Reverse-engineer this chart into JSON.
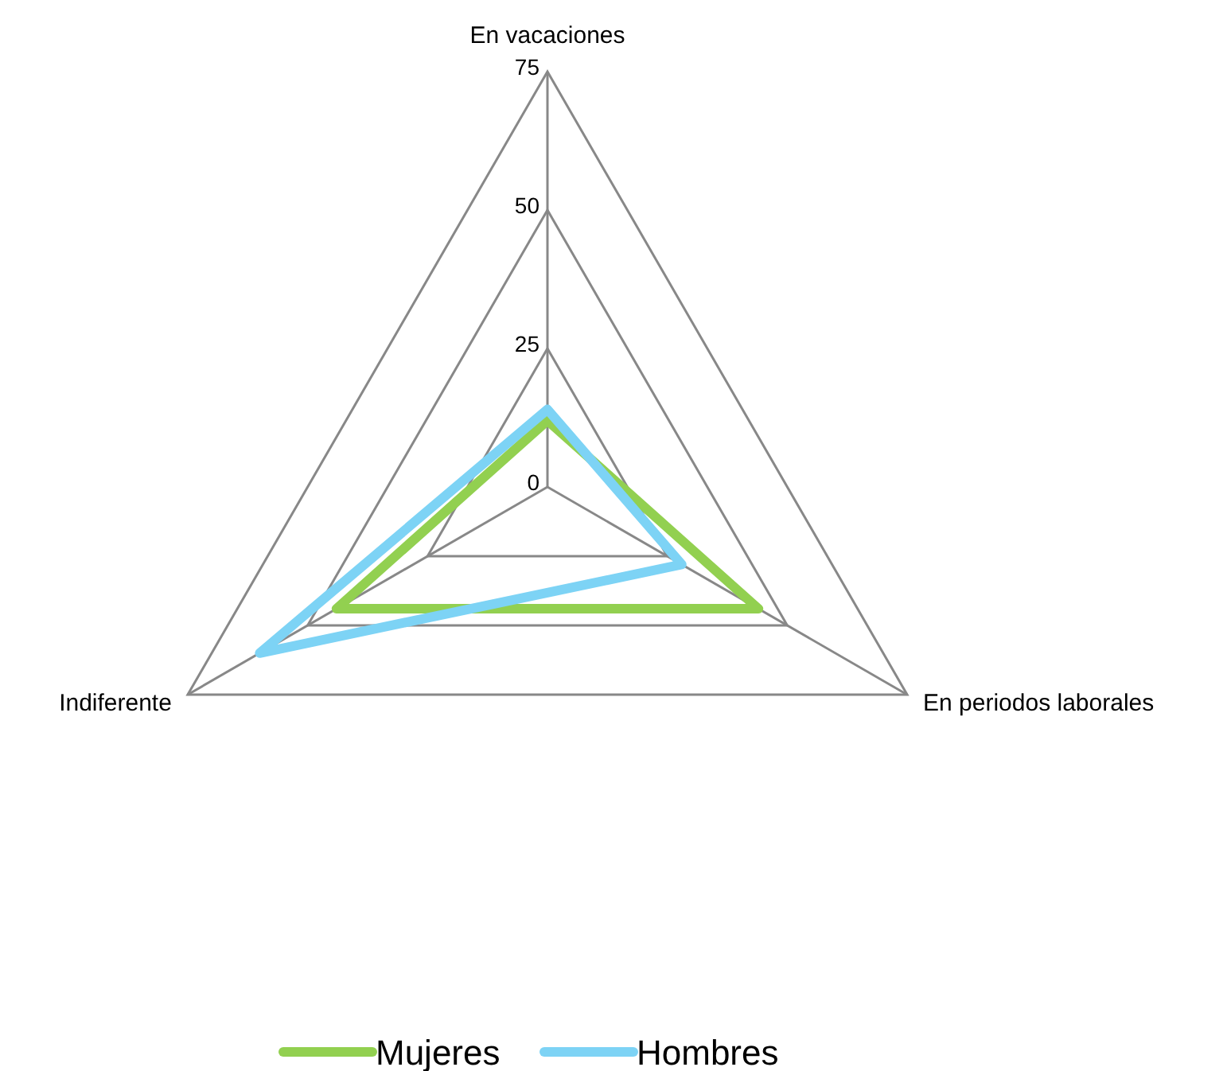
{
  "chart_data": {
    "type": "radar",
    "categories": [
      "En vacaciones",
      "En periodos laborales",
      "Indiferente"
    ],
    "ylim": [
      0,
      75
    ],
    "yticks": [
      0,
      25,
      50,
      75
    ],
    "legend": "bottom",
    "series": [
      {
        "name": "Mujeres",
        "color": "#92d050",
        "values": [
          12,
          44,
          44
        ]
      },
      {
        "name": "Hombres",
        "color": "#7dd3f5",
        "values": [
          14,
          28,
          60
        ]
      }
    ]
  }
}
